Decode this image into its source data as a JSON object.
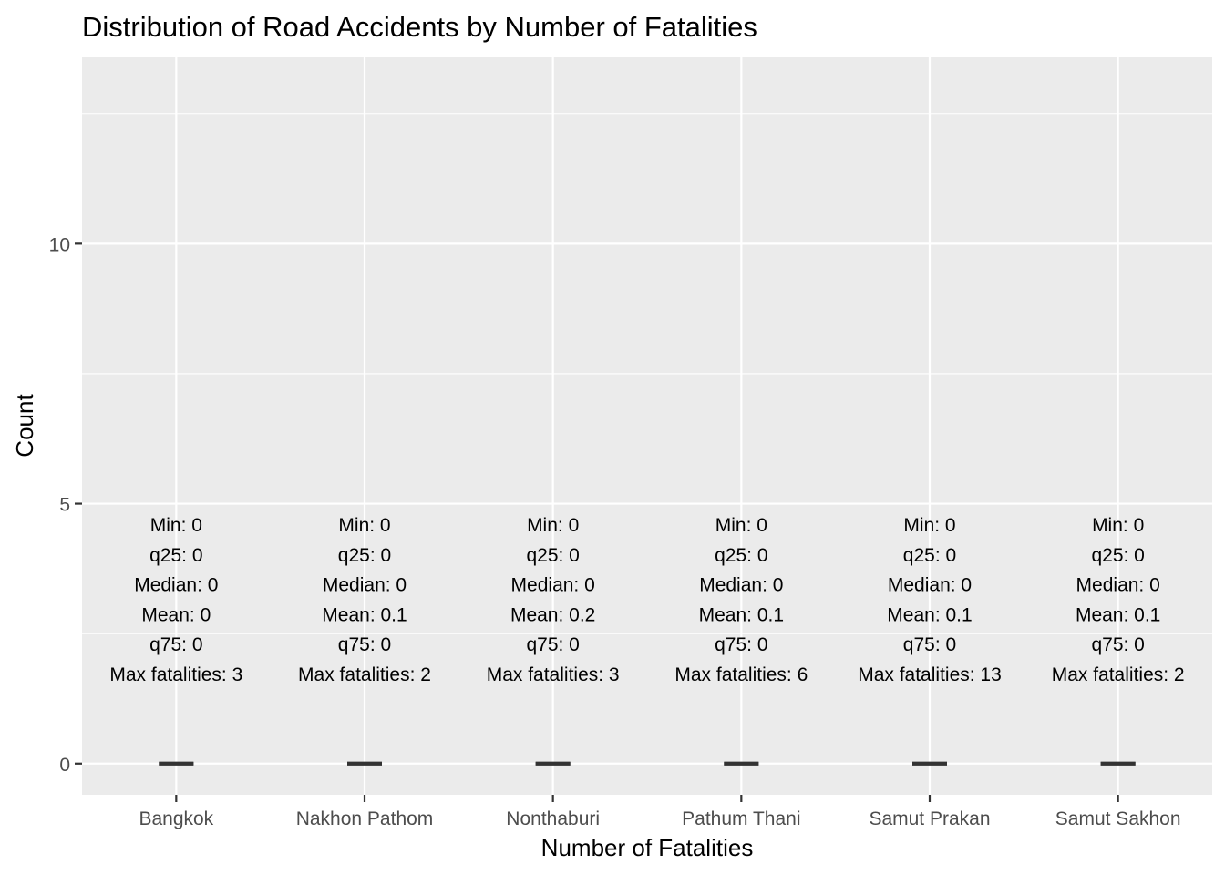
{
  "chart_data": {
    "type": "boxplot",
    "title": "Distribution of Road Accidents by Number of Fatalities",
    "xlabel": "Number of Fatalities",
    "ylabel": "Count",
    "ylim": [
      -0.6,
      13.6
    ],
    "yticks": [
      0,
      5,
      10
    ],
    "grid": true,
    "background": "#ebebeb",
    "gridline_color": "#ffffff",
    "box_color": "#333333",
    "categories": [
      "Bangkok",
      "Nakhon Pathom",
      "Nonthaburi",
      "Pathum Thani",
      "Samut Prakan",
      "Samut Sakhon"
    ],
    "stats": [
      {
        "min": 0,
        "q25": 0,
        "median": 0,
        "mean": 0,
        "q75": 0,
        "max": 3
      },
      {
        "min": 0,
        "q25": 0,
        "median": 0,
        "mean": 0.1,
        "q75": 0,
        "max": 2
      },
      {
        "min": 0,
        "q25": 0,
        "median": 0,
        "mean": 0.2,
        "q75": 0,
        "max": 3
      },
      {
        "min": 0,
        "q25": 0,
        "median": 0,
        "mean": 0.1,
        "q75": 0,
        "max": 6
      },
      {
        "min": 0,
        "q25": 0,
        "median": 0,
        "mean": 0.1,
        "q75": 0,
        "max": 13
      },
      {
        "min": 0,
        "q25": 0,
        "median": 0,
        "mean": 0.1,
        "q75": 0,
        "max": 2
      }
    ],
    "annotations": [
      [
        "Min: 0",
        "q25: 0",
        "Median: 0",
        "Mean: 0",
        "q75: 0",
        "Max fatalities: 3"
      ],
      [
        "Min: 0",
        "q25: 0",
        "Median: 0",
        "Mean: 0.1",
        "q75: 0",
        "Max fatalities: 2"
      ],
      [
        "Min: 0",
        "q25: 0",
        "Median: 0",
        "Mean: 0.2",
        "q75: 0",
        "Max fatalities: 3"
      ],
      [
        "Min: 0",
        "q25: 0",
        "Median: 0",
        "Mean: 0.1",
        "q75: 0",
        "Max fatalities: 6"
      ],
      [
        "Min: 0",
        "q25: 0",
        "Median: 0",
        "Mean: 0.1",
        "q75: 0",
        "Max fatalities: 13"
      ],
      [
        "Min: 0",
        "q25: 0",
        "Median: 0",
        "Mean: 0.1",
        "q75: 0",
        "Max fatalities: 2"
      ]
    ]
  }
}
